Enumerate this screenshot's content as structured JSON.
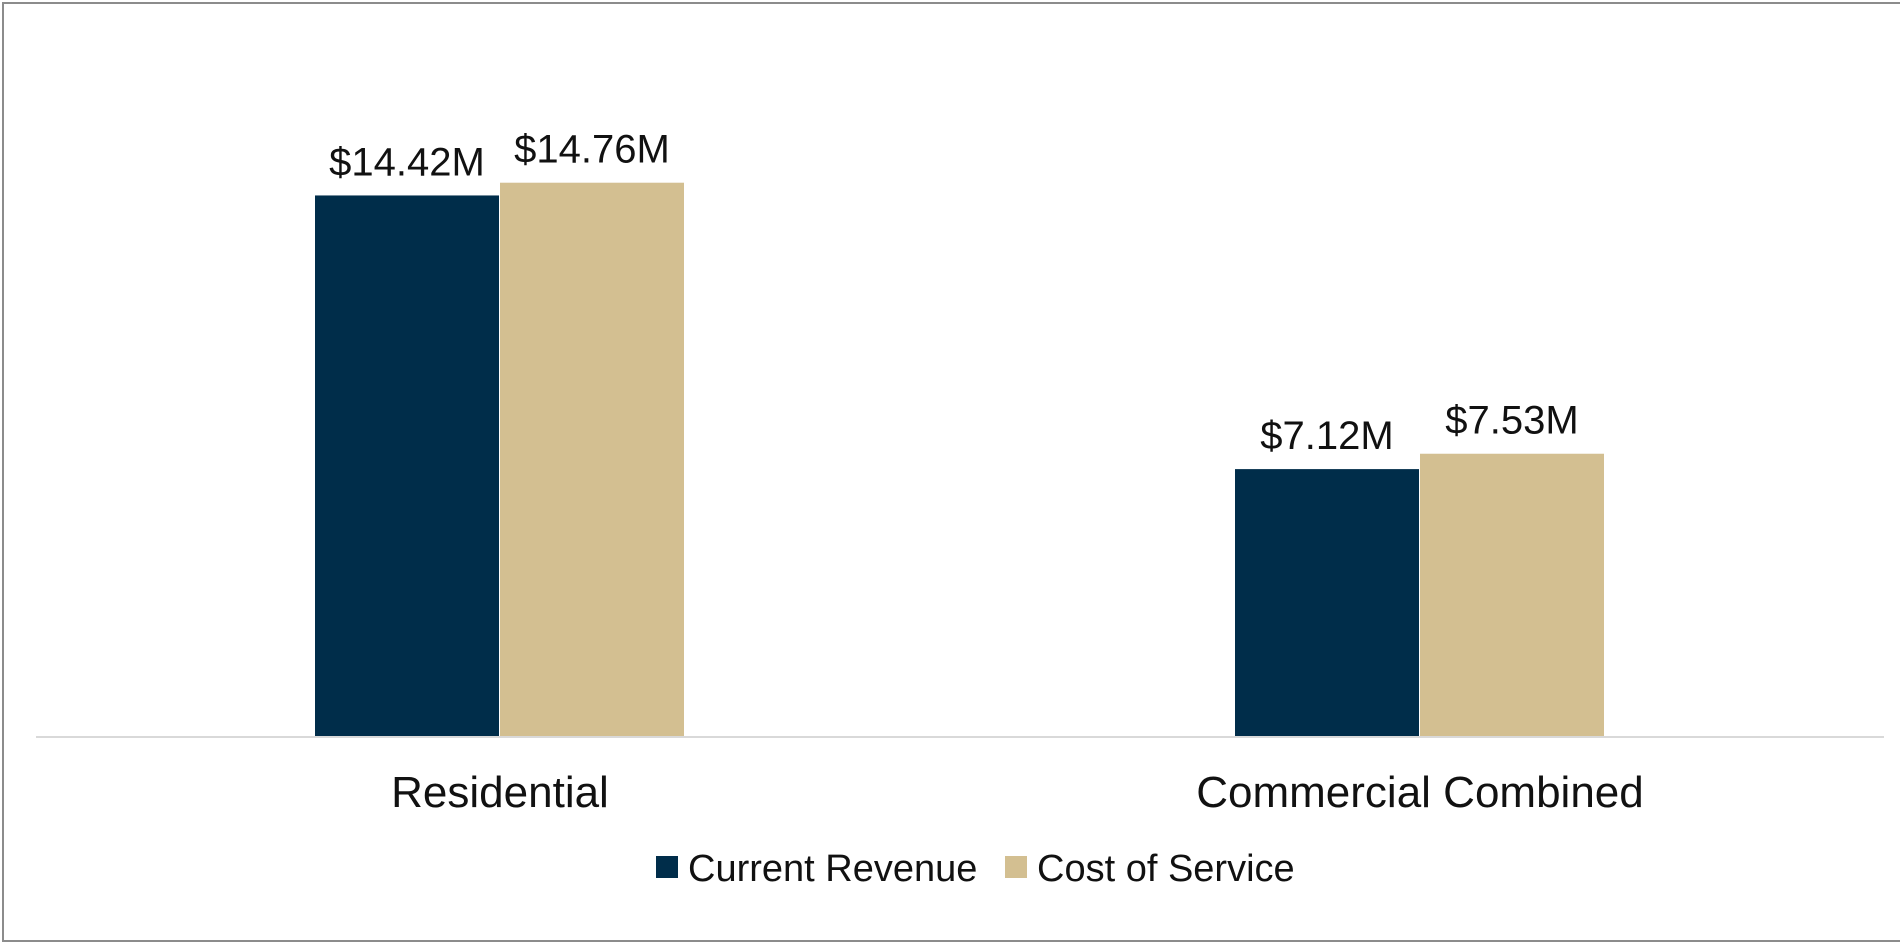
{
  "chart_data": {
    "type": "bar",
    "categories": [
      "Residential",
      "Commercial Combined"
    ],
    "series": [
      {
        "name": "Current Revenue",
        "values": [
          14.42,
          7.12
        ],
        "labels": [
          "$14.42M",
          "$7.12M"
        ],
        "color": "#002d4a"
      },
      {
        "name": "Cost of Service",
        "values": [
          14.76,
          7.53
        ],
        "labels": [
          "$14.76M",
          "$7.53M"
        ],
        "color": "#d3bf91"
      }
    ],
    "ylim": [
      0,
      17.5
    ],
    "grid": false,
    "legend_position": "bottom",
    "axis_color": "#d9d9d9"
  }
}
